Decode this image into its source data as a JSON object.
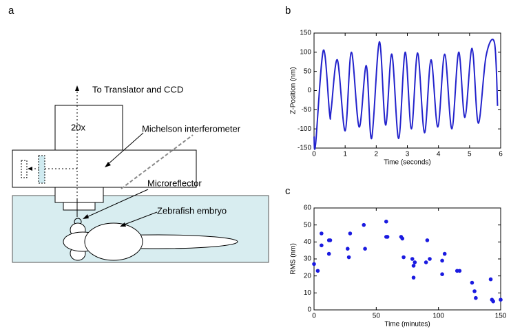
{
  "panel_labels": [
    "a",
    "b",
    "c"
  ],
  "diagram": {
    "labels": [
      "To Translator and CCD",
      "20x",
      "Michelson interferometer",
      "Microreflector",
      "Zebrafish embryo"
    ]
  },
  "chart_data": [
    {
      "type": "line",
      "xlabel": "Time (seconds)",
      "ylabel": "Z-Position (nm)",
      "x": [
        0,
        0.05,
        0.3,
        0.5,
        0.55,
        0.75,
        1.0,
        1.2,
        1.45,
        1.68,
        1.85,
        2.1,
        2.3,
        2.5,
        2.72,
        2.93,
        3.13,
        3.33,
        3.55,
        3.76,
        3.98,
        4.2,
        4.43,
        4.65,
        4.85,
        5.08,
        5.28,
        5.53,
        5.8,
        5.9
      ],
      "series": [
        {
          "color": "#2323cc",
          "values": [
            -120,
            -140,
            105,
            -60,
            -50,
            80,
            -105,
            100,
            -95,
            65,
            -125,
            127,
            -90,
            95,
            -125,
            100,
            -100,
            98,
            -110,
            80,
            -95,
            95,
            -100,
            100,
            -70,
            110,
            -85,
            90,
            125,
            -40
          ]
        }
      ],
      "xlim": [
        0,
        6
      ],
      "xticks": [
        0,
        1,
        2,
        3,
        4,
        5,
        6
      ],
      "ylim": [
        -150,
        150
      ],
      "yticks": [
        -150,
        -100,
        -50,
        0,
        50,
        100,
        150
      ]
    },
    {
      "type": "scatter",
      "xlabel": "Time (minutes)",
      "ylabel": "RMS (nm)",
      "x": [
        0,
        3,
        6,
        6,
        12,
        13,
        12,
        27,
        28,
        29,
        40,
        41,
        58,
        58,
        59,
        70,
        71,
        72,
        79,
        80,
        80,
        81,
        90,
        91,
        93,
        103,
        103,
        105,
        115,
        117,
        127,
        129,
        130,
        142,
        143,
        144,
        150
      ],
      "series": [
        {
          "color": "#1a1ae0",
          "values": [
            27,
            23,
            38,
            45,
            41,
            41,
            33,
            36,
            31,
            45,
            50,
            36,
            52,
            43,
            43,
            43,
            42,
            31,
            30,
            19,
            26,
            28,
            28,
            41,
            30,
            29,
            21,
            33,
            23,
            23,
            16,
            11,
            7,
            18,
            6,
            5,
            6
          ]
        }
      ],
      "xlim": [
        0,
        150
      ],
      "xticks": [
        0,
        50,
        100,
        150
      ],
      "ylim": [
        0,
        60
      ],
      "yticks": [
        0,
        10,
        20,
        30,
        40,
        50,
        60
      ]
    }
  ]
}
